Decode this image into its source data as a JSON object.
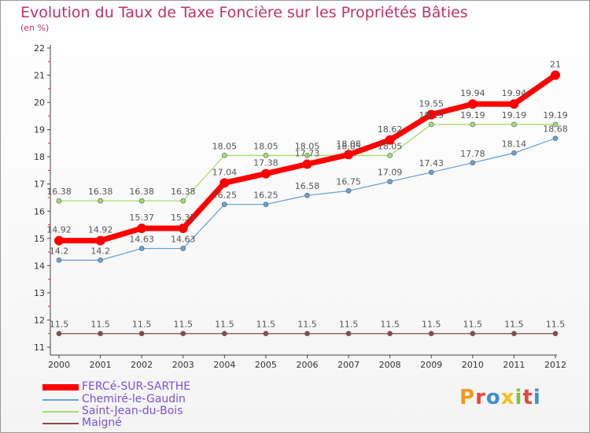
{
  "title": "Evolution du Taux de Taxe Foncière sur les Propriétés Bâties",
  "unit_label": "(en %)",
  "logo_text": "Proxiti",
  "chart_data": {
    "type": "line",
    "title": "Evolution du Taux de Taxe Foncière sur les Propriétés Bâties",
    "ylabel": "(en %)",
    "xlabel": "",
    "ylim": [
      11,
      22
    ],
    "yticks": [
      "11",
      "12",
      "13",
      "14",
      "15",
      "16",
      "17",
      "18",
      "19",
      "20",
      "21",
      "22"
    ],
    "categories": [
      "2000",
      "2001",
      "2002",
      "2003",
      "2004",
      "2005",
      "2006",
      "2007",
      "2008",
      "2009",
      "2010",
      "2011",
      "2012"
    ],
    "legend_position": "bottom-left",
    "series": [
      {
        "name": "FERCé-SUR-SARTHE",
        "color": "#ff0000",
        "values": [
          14.92,
          14.92,
          15.37,
          15.37,
          17.04,
          17.38,
          17.73,
          18.08,
          18.62,
          19.55,
          19.94,
          19.94,
          21
        ],
        "labels": [
          "14.92",
          "14.92",
          "15.37",
          "15.37",
          "17.04",
          "17.38",
          "17.73",
          "18.08",
          "18.62",
          "19.55",
          "19.94",
          "19.94",
          "21"
        ]
      },
      {
        "name": "Chemiré-le-Gaudin",
        "color": "#6aa3d5",
        "values": [
          14.2,
          14.2,
          14.63,
          14.63,
          16.25,
          16.25,
          16.58,
          16.75,
          17.09,
          17.43,
          17.78,
          18.14,
          18.68
        ],
        "labels": [
          "14.2",
          "14.2",
          "14.63",
          "14.63",
          "16.25",
          "16.25",
          "16.58",
          "16.75",
          "17.09",
          "17.43",
          "17.78",
          "18.14",
          "18.68"
        ]
      },
      {
        "name": "Saint-Jean-du-Bois",
        "color": "#a6dd70",
        "values": [
          16.38,
          16.38,
          16.38,
          16.38,
          18.05,
          18.05,
          18.05,
          18.05,
          18.05,
          19.19,
          19.19,
          19.19,
          19.19
        ],
        "labels": [
          "16.38",
          "16.38",
          "16.38",
          "16.38",
          "18.05",
          "18.05",
          "18.05",
          "18.05",
          "18.05",
          "19.19",
          "19.19",
          "19.19",
          "19.19"
        ]
      },
      {
        "name": "Maigné",
        "color": "#8b4a4a",
        "values": [
          11.5,
          11.5,
          11.5,
          11.5,
          11.5,
          11.5,
          11.5,
          11.5,
          11.5,
          11.5,
          11.5,
          11.5,
          11.5
        ],
        "labels": [
          "11.5",
          "11.5",
          "11.5",
          "11.5",
          "11.5",
          "11.5",
          "11.5",
          "11.5",
          "11.5",
          "11.5",
          "11.5",
          "11.5",
          "11.5"
        ]
      }
    ]
  }
}
